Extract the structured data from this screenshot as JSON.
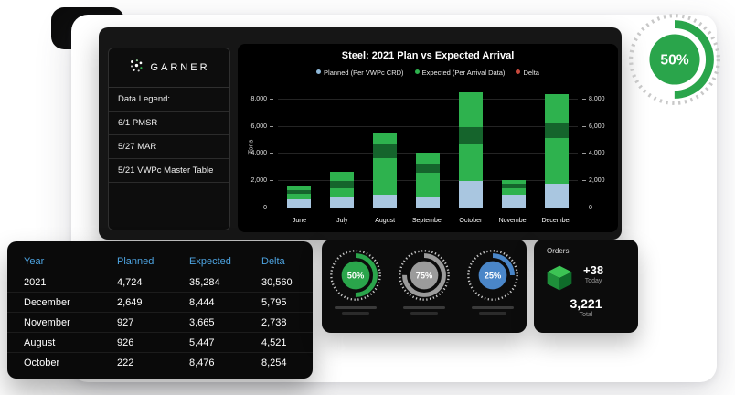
{
  "sidebar": {
    "logo_text": "GARNER",
    "items": [
      "Data Legend:",
      "6/1 PMSR",
      "5/27 MAR",
      "5/21 VWPc Master Table"
    ]
  },
  "chart_data": {
    "type": "bar",
    "title": "Steel: 2021 Plan vs Expected Arrival",
    "ylabel": "Tons",
    "categories": [
      "June",
      "July",
      "August",
      "September",
      "October",
      "November",
      "December"
    ],
    "legend": [
      {
        "label": "Planned (Per VWPc CRD)",
        "color": "#8fb8d8"
      },
      {
        "label": "Expected (Per Arrival Data)",
        "color": "#2eb24e"
      },
      {
        "label": "Delta",
        "color": "#c94a3d"
      }
    ],
    "ylim": [
      0,
      9000
    ],
    "yticks": [
      0,
      2000,
      4000,
      6000,
      8000
    ],
    "ytick_labels": [
      "0",
      "2,000",
      "4,000",
      "6,000",
      "8,000"
    ],
    "grid": true,
    "legend_position": "top",
    "segment_colors": {
      "planned": "#a9c6e0",
      "green": "#2eb24e",
      "dark": "#15642c"
    },
    "bars": [
      {
        "month": "June",
        "segments": [
          [
            "planned",
            700
          ],
          [
            "green",
            400
          ],
          [
            "dark",
            250
          ],
          [
            "green",
            300
          ]
        ]
      },
      {
        "month": "July",
        "segments": [
          [
            "planned",
            900
          ],
          [
            "green",
            600
          ],
          [
            "dark",
            500
          ],
          [
            "green",
            700
          ]
        ]
      },
      {
        "month": "August",
        "segments": [
          [
            "planned",
            1000
          ],
          [
            "green",
            2700
          ],
          [
            "dark",
            1000
          ],
          [
            "green",
            800
          ]
        ]
      },
      {
        "month": "September",
        "segments": [
          [
            "planned",
            800
          ],
          [
            "green",
            1800
          ],
          [
            "dark",
            700
          ],
          [
            "green",
            800
          ]
        ]
      },
      {
        "month": "October",
        "segments": [
          [
            "planned",
            2000
          ],
          [
            "green",
            2800
          ],
          [
            "dark",
            1200
          ],
          [
            "green",
            2500
          ]
        ]
      },
      {
        "month": "November",
        "segments": [
          [
            "planned",
            1000
          ],
          [
            "green",
            500
          ],
          [
            "dark",
            300
          ],
          [
            "green",
            300
          ]
        ]
      },
      {
        "month": "December",
        "segments": [
          [
            "planned",
            1800
          ],
          [
            "green",
            3400
          ],
          [
            "dark",
            1100
          ],
          [
            "green",
            2100
          ]
        ]
      }
    ]
  },
  "table": {
    "header_color": "#4da3e0",
    "headers": [
      "Year",
      "Planned",
      "Expected",
      "Delta"
    ],
    "rows": [
      [
        "2021",
        "4,724",
        "35,284",
        "30,560"
      ],
      [
        "December",
        "2,649",
        "8,444",
        "5,795"
      ],
      [
        "November",
        "927",
        "3,665",
        "2,738"
      ],
      [
        "August",
        "926",
        "5,447",
        "4,521"
      ],
      [
        "October",
        "222",
        "8,476",
        "8,254"
      ]
    ]
  },
  "big_gauge": {
    "label": "50%",
    "percent": 50,
    "color": "#2aa54b"
  },
  "gauges": [
    {
      "label": "50%",
      "percent": 50,
      "color": "#2aa54b"
    },
    {
      "label": "75%",
      "percent": 75,
      "color": "#9b9b9b"
    },
    {
      "label": "25%",
      "percent": 25,
      "color": "#4a86c8"
    }
  ],
  "orders": {
    "title": "Orders",
    "delta_value": "+38",
    "delta_label": "Today",
    "total_value": "3,221",
    "total_label": "Total",
    "cube_colors": {
      "top": "#3cc354",
      "left": "#1e8f3a",
      "right": "#0f6b2a"
    }
  },
  "icons": {
    "logo": "garner-logo-icon",
    "orders": "cube-icon"
  }
}
